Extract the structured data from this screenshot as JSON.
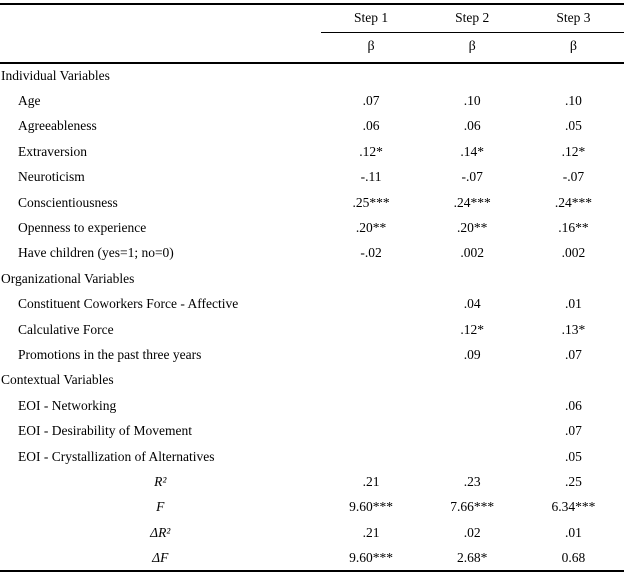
{
  "table": {
    "header": {
      "steps": [
        "Step 1",
        "Step 2",
        "Step 3"
      ],
      "sub": [
        "β",
        "β",
        "β"
      ]
    },
    "rows": [
      {
        "type": "section",
        "label": "Individual Variables",
        "values": [
          "",
          "",
          ""
        ]
      },
      {
        "type": "item",
        "label": "Age",
        "values": [
          ".07",
          ".10",
          ".10"
        ]
      },
      {
        "type": "item",
        "label": "Agreeableness",
        "values": [
          ".06",
          ".06",
          ".05"
        ]
      },
      {
        "type": "item",
        "label": "Extraversion",
        "values": [
          ".12*",
          ".14*",
          ".12*"
        ]
      },
      {
        "type": "item",
        "label": "Neuroticism",
        "values": [
          "-.11",
          "-.07",
          "-.07"
        ]
      },
      {
        "type": "item",
        "label": "Conscientiousness",
        "values": [
          ".25***",
          ".24***",
          ".24***"
        ]
      },
      {
        "type": "item",
        "label": "Openness to experience",
        "values": [
          ".20**",
          ".20**",
          ".16**"
        ]
      },
      {
        "type": "item",
        "label": "Have children (yes=1; no=0)",
        "values": [
          "-.02",
          ".002",
          ".002"
        ]
      },
      {
        "type": "section",
        "label": "Organizational Variables",
        "values": [
          "",
          "",
          ""
        ]
      },
      {
        "type": "item",
        "label": "Constituent Coworkers Force - Affective",
        "values": [
          "",
          ".04",
          ".01"
        ]
      },
      {
        "type": "item",
        "label": "Calculative Force",
        "values": [
          "",
          ".12*",
          ".13*"
        ]
      },
      {
        "type": "item",
        "label": "Promotions in the past three years",
        "values": [
          "",
          ".09",
          ".07"
        ]
      },
      {
        "type": "section",
        "label": "Contextual Variables",
        "values": [
          "",
          "",
          ""
        ]
      },
      {
        "type": "item",
        "label": "EOI - Networking",
        "values": [
          "",
          "",
          ".06"
        ]
      },
      {
        "type": "item",
        "label": "EOI - Desirability of Movement",
        "values": [
          "",
          "",
          ".07"
        ]
      },
      {
        "type": "item",
        "label": "EOI - Crystallization of Alternatives",
        "values": [
          "",
          "",
          ".05"
        ]
      },
      {
        "type": "stat",
        "label": "R²",
        "values": [
          ".21",
          ".23",
          ".25"
        ]
      },
      {
        "type": "stat",
        "label": "F",
        "values": [
          "9.60***",
          "7.66***",
          "6.34***"
        ]
      },
      {
        "type": "stat",
        "label": "ΔR²",
        "values": [
          ".21",
          ".02",
          ".01"
        ]
      },
      {
        "type": "stat",
        "label": "ΔF",
        "values": [
          "9.60***",
          "2.68*",
          "0.68"
        ]
      }
    ]
  },
  "colors": {
    "text": "#000000",
    "background": "#ffffff",
    "rule": "#000000"
  }
}
